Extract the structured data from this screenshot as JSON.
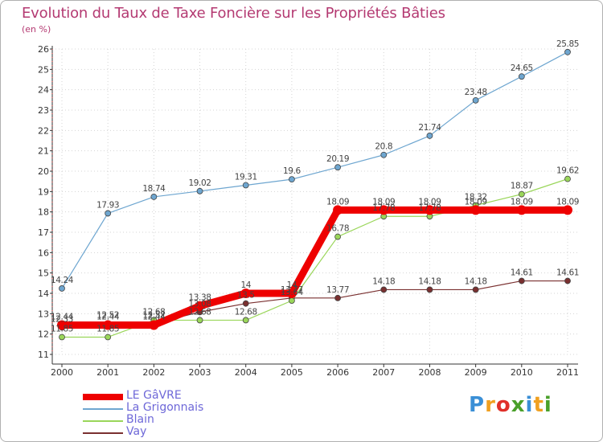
{
  "title": "Evolution du Taux de Taxe Foncière sur les Propriétés Bâties",
  "unit_label": "(en %)",
  "logo": {
    "text": "Proxiti",
    "letters": [
      "P",
      "r",
      "o",
      "x",
      "i",
      "t",
      "i"
    ],
    "colors": [
      "#3a8fd6",
      "#f0a020",
      "#e0302a",
      "#4aa02a",
      "#3a8fd6",
      "#f0a020",
      "#4aa02a"
    ]
  },
  "chart_data": {
    "type": "line",
    "title": "Evolution du Taux de Taxe Foncière sur les Propriétés Bâties",
    "ylabel": "(en %)",
    "xlabel": "",
    "x": [
      "2000",
      "2001",
      "2002",
      "2003",
      "2004",
      "2005",
      "2006",
      "2007",
      "2008",
      "2009",
      "2010",
      "2011"
    ],
    "ylim": [
      11,
      26
    ],
    "yticks": [
      11,
      12,
      13,
      14,
      15,
      16,
      17,
      18,
      19,
      20,
      21,
      22,
      23,
      24,
      25,
      26
    ],
    "series": [
      {
        "name": "LE GâVRE",
        "color": "#ee0000",
        "values": [
          12.44,
          12.44,
          12.44,
          13.38,
          14,
          14,
          18.09,
          18.09,
          18.09,
          18.09,
          18.09,
          18.09
        ],
        "labels": [
          "12.44",
          "12.44",
          "12.44",
          "13.38",
          "14",
          "14",
          "18.09",
          "18.09",
          "18.09",
          "18.09",
          "18.09",
          "18.09"
        ]
      },
      {
        "name": "La Grigonnais",
        "color": "#6ea6d0",
        "values": [
          14.24,
          17.93,
          18.74,
          19.02,
          19.31,
          19.6,
          20.19,
          20.8,
          21.74,
          23.48,
          24.65,
          25.85
        ],
        "labels": [
          "14.24",
          "17.93",
          "18.74",
          "19.02",
          "19.31",
          "19.6",
          "20.19",
          "20.8",
          "21.74",
          "23.48",
          "24.65",
          "25.85"
        ]
      },
      {
        "name": "Blain",
        "color": "#9ad65a",
        "values": [
          11.85,
          11.85,
          12.68,
          12.68,
          12.68,
          13.64,
          16.78,
          17.78,
          17.78,
          18.32,
          18.87,
          19.62
        ],
        "labels": [
          "11.85",
          "11.85",
          "12.68",
          "12.68",
          "12.68",
          "13.64",
          "16.78",
          "17.78",
          "17.78",
          "18.32",
          "18.87",
          "19.62"
        ]
      },
      {
        "name": "Vay",
        "color": "#7a3030",
        "values": [
          12.33,
          12.52,
          12.52,
          13.08,
          13.5,
          13.77,
          13.77,
          14.18,
          14.18,
          14.18,
          14.61,
          14.61
        ],
        "labels": [
          "12.33",
          "12.52",
          "12.52",
          "13.08",
          "13.5",
          "13.77",
          "13.77",
          "14.18",
          "14.18",
          "14.18",
          "14.61",
          "14.61"
        ]
      }
    ],
    "legend_position": "bottom-left"
  }
}
